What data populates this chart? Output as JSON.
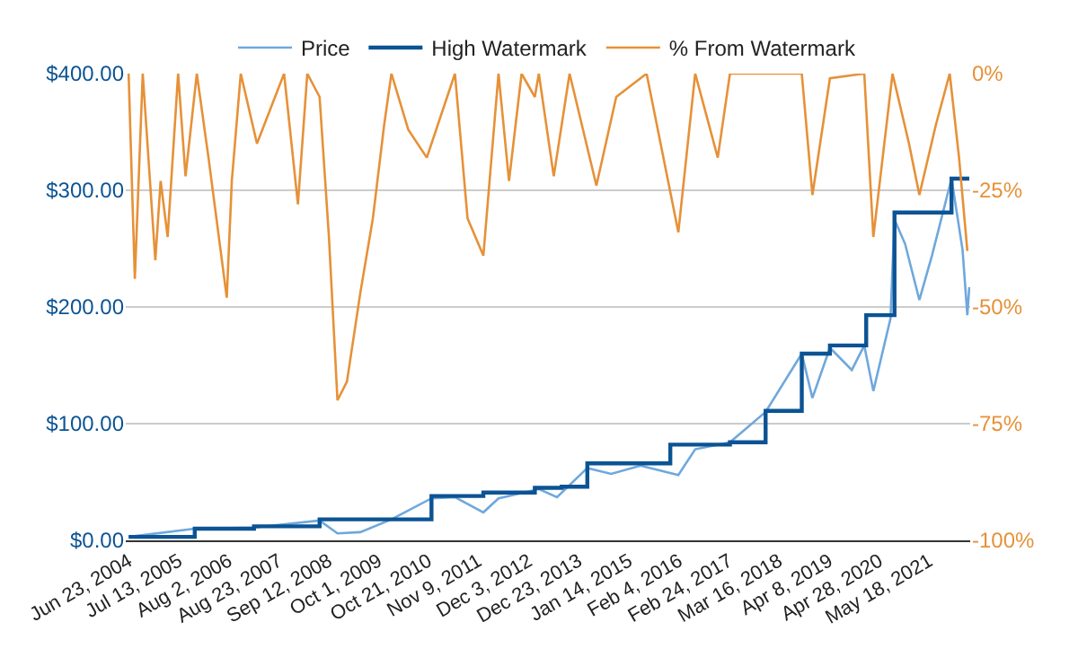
{
  "chart_data": {
    "type": "line",
    "xlim": [
      "2004-06-01",
      "2022-04-01"
    ],
    "xticks": [
      {
        "value": "2004-06-23",
        "label": "Jun 23, 2004"
      },
      {
        "value": "2005-07-13",
        "label": "Jul 13, 2005"
      },
      {
        "value": "2006-08-02",
        "label": "Aug 2, 2006"
      },
      {
        "value": "2007-08-23",
        "label": "Aug 23, 2007"
      },
      {
        "value": "2008-09-12",
        "label": "Sep 12, 2008"
      },
      {
        "value": "2009-10-01",
        "label": "Oct 1, 2009"
      },
      {
        "value": "2010-10-21",
        "label": "Oct 21, 2010"
      },
      {
        "value": "2011-11-09",
        "label": "Nov 9, 2011"
      },
      {
        "value": "2012-12-03",
        "label": "Dec 3, 2012"
      },
      {
        "value": "2013-12-23",
        "label": "Dec 23, 2013"
      },
      {
        "value": "2015-01-14",
        "label": "Jan 14, 2015"
      },
      {
        "value": "2016-02-04",
        "label": "Feb 4, 2016"
      },
      {
        "value": "2017-02-24",
        "label": "Feb 24, 2017"
      },
      {
        "value": "2018-03-16",
        "label": "Mar 16, 2018"
      },
      {
        "value": "2019-04-08",
        "label": "Apr 8, 2019"
      },
      {
        "value": "2020-04-28",
        "label": "Apr 28, 2020"
      },
      {
        "value": "2021-05-18",
        "label": "May 18, 2021"
      }
    ],
    "ylim": [
      0,
      400
    ],
    "yticks": [
      {
        "value": 0,
        "label": "$0.00"
      },
      {
        "value": 100,
        "label": "$100.00"
      },
      {
        "value": 200,
        "label": "$200.00"
      },
      {
        "value": 300,
        "label": "$300.00"
      },
      {
        "value": 400,
        "label": "$400.00"
      }
    ],
    "y2lim": [
      -100,
      0
    ],
    "y2ticks": [
      {
        "value": -100,
        "label": "-100%"
      },
      {
        "value": -75,
        "label": "-75%"
      },
      {
        "value": -50,
        "label": "-50%"
      },
      {
        "value": -25,
        "label": "-25%"
      },
      {
        "value": 0,
        "label": "0%"
      }
    ],
    "grid": "y",
    "legend": "top",
    "series": [
      {
        "name": "Price",
        "color": "#6fa8dc",
        "x": [
          "2004-06-23",
          "2005-11-15",
          "2007-02-15",
          "2008-07-05",
          "2008-11-20",
          "2009-05-15",
          "2010-01-10",
          "2010-11-15",
          "2011-05-15",
          "2011-12-20",
          "2012-04-15",
          "2013-01-20",
          "2013-02-20",
          "2013-07-10",
          "2014-03-01",
          "2014-09-01",
          "2015-04-15",
          "2016-02-01",
          "2016-06-10",
          "2017-03-05",
          "2017-12-05",
          "2018-09-10",
          "2018-12-01",
          "2019-04-15",
          "2019-10-01",
          "2020-01-05",
          "2020-03-15",
          "2020-07-25",
          "2020-08-25",
          "2020-11-15",
          "2021-03-05",
          "2021-06-10",
          "2021-11-08",
          "2022-02-01",
          "2022-03-10",
          "2022-03-25"
        ],
        "values": [
          3,
          10,
          11,
          17,
          6,
          7,
          18,
          36,
          37,
          24,
          36,
          43,
          44,
          37,
          62,
          57,
          64,
          56,
          78,
          84,
          110,
          160,
          122,
          165,
          146,
          167,
          128,
          190,
          275,
          254,
          206,
          244,
          310,
          249,
          193,
          217
        ]
      },
      {
        "name": "High Watermark",
        "type": "step",
        "color": "#0b5394",
        "x": [
          "2004-06-23",
          "2005-11-15",
          "2007-02-15",
          "2008-07-05",
          "2010-11-15",
          "2011-12-20",
          "2013-01-20",
          "2013-08-15",
          "2014-03-01",
          "2015-12-01",
          "2017-03-05",
          "2017-12-05",
          "2018-09-10",
          "2019-04-15",
          "2020-01-20",
          "2020-08-25",
          "2021-11-08",
          "2022-03-25"
        ],
        "values": [
          3,
          10,
          12,
          18,
          38,
          41,
          45,
          46,
          66,
          82,
          84,
          111,
          160,
          167,
          193,
          281,
          310,
          310
        ]
      },
      {
        "name": "% From Watermark",
        "color": "#e69138",
        "axis": "y2",
        "x": [
          "2004-06-23",
          "2004-08-10",
          "2004-10-10",
          "2005-01-15",
          "2005-02-25",
          "2005-04-20",
          "2005-07-10",
          "2005-09-05",
          "2005-12-01",
          "2006-03-01",
          "2006-07-20",
          "2006-08-28",
          "2006-11-05",
          "2007-03-10",
          "2007-10-05",
          "2008-01-20",
          "2008-04-01",
          "2008-07-05",
          "2008-09-15",
          "2008-11-20",
          "2009-02-01",
          "2009-05-15",
          "2009-08-20",
          "2009-11-15",
          "2010-01-10",
          "2010-05-20",
          "2010-10-10",
          "2011-05-15",
          "2011-08-20",
          "2011-12-20",
          "2012-04-15",
          "2012-07-05",
          "2012-10-10",
          "2013-01-20",
          "2013-02-20",
          "2013-06-15",
          "2013-10-15",
          "2014-05-10",
          "2014-10-10",
          "2015-06-01",
          "2016-02-01",
          "2016-06-10",
          "2016-12-01",
          "2017-03-05",
          "2018-09-10",
          "2018-12-01",
          "2019-04-15",
          "2020-01-05",
          "2020-03-15",
          "2020-08-10",
          "2020-12-15",
          "2021-03-05",
          "2021-07-10",
          "2021-10-25",
          "2022-01-05",
          "2022-03-10"
        ],
        "values": [
          0,
          -44,
          0,
          -40,
          -23,
          -35,
          0,
          -22,
          0,
          -18,
          -48,
          -23,
          0,
          -15,
          0,
          -28,
          0,
          -5,
          -35,
          -70,
          -66,
          -47,
          -31,
          -11,
          0,
          -12,
          -18,
          0,
          -31,
          -39,
          0,
          -23,
          0,
          -5,
          0,
          -22,
          0,
          -24,
          -5,
          0,
          -34,
          0,
          -18,
          0,
          0,
          -26,
          -1,
          0,
          -35,
          0,
          -15,
          -26,
          -11,
          0,
          -18,
          -38
        ]
      }
    ]
  }
}
